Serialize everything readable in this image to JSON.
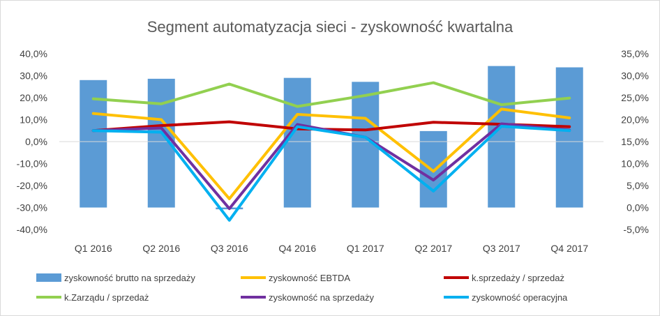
{
  "chart_data": {
    "type": "bar+line",
    "title": "Segment automatyzacja sieci - zyskowność kwartalna",
    "categories": [
      "Q1 2016",
      "Q2 2016",
      "Q3 2016",
      "Q4 2016",
      "Q1 2017",
      "Q2 2017",
      "Q3 2017",
      "Q4 2017"
    ],
    "y_left": {
      "min": -40,
      "max": 40,
      "step": 10,
      "ticks": [
        "40,0%",
        "30,0%",
        "20,0%",
        "10,0%",
        "0,0%",
        "-10,0%",
        "-20,0%",
        "-30,0%",
        "-40,0%"
      ]
    },
    "y_right": {
      "min": -5,
      "max": 35,
      "step": 5,
      "ticks": [
        "35,0%",
        "30,0%",
        "25,0%",
        "20,0%",
        "15,0%",
        "10,0%",
        "5,0%",
        "0,0%",
        "-5,0%"
      ]
    },
    "bars": {
      "name": "zyskowność brutto na sprzedaży",
      "axis": "right",
      "color": "#5b9bd5",
      "values": [
        29.0,
        29.3,
        -0.4,
        29.5,
        28.6,
        17.4,
        32.2,
        31.9
      ]
    },
    "series": [
      {
        "name": "zyskowność EBTDA",
        "axis": "left",
        "color": "#ffc000",
        "values": [
          12.8,
          10.0,
          -26.0,
          12.4,
          10.6,
          -13.5,
          14.8,
          10.8
        ]
      },
      {
        "name": "k.sprzedaży / sprzedaż",
        "axis": "left",
        "color": "#c00000",
        "values": [
          5.0,
          7.3,
          9.0,
          5.8,
          5.3,
          8.8,
          7.9,
          6.8
        ]
      },
      {
        "name": "k.Zarządu / sprzedaż",
        "axis": "left",
        "color": "#92d050",
        "values": [
          19.5,
          17.2,
          26.2,
          16.0,
          21.0,
          26.8,
          16.8,
          19.8
        ]
      },
      {
        "name": "zyskowność na sprzedaży",
        "axis": "left",
        "color": "#7030a0",
        "values": [
          5.0,
          6.2,
          -30.5,
          7.8,
          2.0,
          -17.5,
          8.1,
          5.2
        ]
      },
      {
        "name": "zyskowność operacyjna",
        "axis": "left",
        "color": "#00b0f0",
        "values": [
          5.0,
          4.3,
          -35.8,
          6.8,
          2.0,
          -22.5,
          7.0,
          5.0
        ]
      }
    ],
    "legend": {
      "position": "bottom",
      "items": [
        {
          "label": "zyskowność brutto na sprzedaży",
          "kind": "bar",
          "color": "#5b9bd5"
        },
        {
          "label": "zyskowność EBTDA",
          "kind": "line",
          "color": "#ffc000"
        },
        {
          "label": "k.sprzedaży / sprzedaż",
          "kind": "line",
          "color": "#c00000"
        },
        {
          "label": "k.Zarządu / sprzedaż",
          "kind": "line",
          "color": "#92d050"
        },
        {
          "label": "zyskowność na sprzedaży",
          "kind": "line",
          "color": "#7030a0"
        },
        {
          "label": "zyskowność operacyjna",
          "kind": "line",
          "color": "#00b0f0"
        }
      ]
    },
    "grid": false
  }
}
